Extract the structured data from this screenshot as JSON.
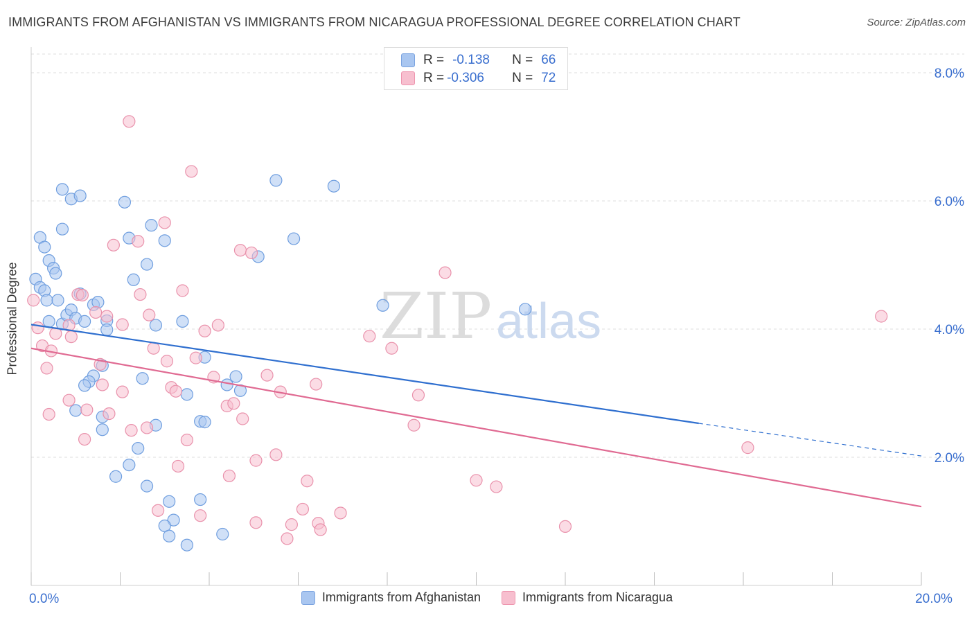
{
  "title": "IMMIGRANTS FROM AFGHANISTAN VS IMMIGRANTS FROM NICARAGUA PROFESSIONAL DEGREE CORRELATION CHART",
  "source": "Source: ZipAtlas.com",
  "watermark": {
    "zip": "ZIP",
    "atlas": "atlas"
  },
  "stats": [
    {
      "r_label": "R =",
      "r_value": "-0.138",
      "n_label": "N =",
      "n_value": "66",
      "color": "#a9c6f0",
      "border": "#7aa3e0"
    },
    {
      "r_label": "R =",
      "r_value": "-0.306",
      "n_label": "N =",
      "n_value": "72",
      "color": "#f7bfcf",
      "border": "#ee94ae"
    }
  ],
  "chart_data": {
    "type": "scatter",
    "title": "IMMIGRANTS FROM AFGHANISTAN VS IMMIGRANTS FROM NICARAGUA PROFESSIONAL DEGREE CORRELATION CHART",
    "xlabel": "",
    "ylabel": "Professional Degree",
    "xlim": [
      0,
      20
    ],
    "ylim": [
      0,
      8.4
    ],
    "x_ticks": [
      0,
      2,
      4,
      6,
      8,
      10,
      12,
      14,
      16,
      18,
      20
    ],
    "x_tick_labels": {
      "0": "0.0%",
      "20": "20.0%"
    },
    "y_ticks": [
      2,
      4,
      6,
      8
    ],
    "y_tick_labels": [
      "2.0%",
      "4.0%",
      "6.0%",
      "8.0%"
    ],
    "grid": true,
    "legend_position": "bottom-center",
    "series": [
      {
        "name": "Immigrants from Afghanistan",
        "color": "#a9c6f0",
        "stroke": "#6f9edf",
        "line_color": "#2f6fcf",
        "trend": {
          "x_start": 0.0,
          "y_start": 4.07,
          "x_solid_end": 15.0,
          "y_solid_end": 2.53,
          "x_end": 20.0,
          "y_end": 2.02
        },
        "points": [
          [
            0.1,
            4.78
          ],
          [
            0.2,
            4.65
          ],
          [
            0.3,
            4.6
          ],
          [
            0.35,
            4.45
          ],
          [
            0.4,
            4.12
          ],
          [
            0.2,
            5.43
          ],
          [
            0.3,
            5.28
          ],
          [
            0.4,
            5.07
          ],
          [
            0.5,
            4.95
          ],
          [
            0.55,
            4.87
          ],
          [
            0.7,
            4.08
          ],
          [
            0.6,
            4.45
          ],
          [
            0.8,
            4.22
          ],
          [
            0.9,
            4.3
          ],
          [
            1.0,
            4.17
          ],
          [
            1.1,
            4.55
          ],
          [
            1.2,
            4.12
          ],
          [
            1.4,
            4.38
          ],
          [
            1.5,
            4.42
          ],
          [
            0.7,
            5.56
          ],
          [
            0.7,
            6.18
          ],
          [
            0.9,
            6.03
          ],
          [
            1.1,
            6.08
          ],
          [
            2.1,
            5.98
          ],
          [
            2.2,
            5.42
          ],
          [
            2.7,
            5.62
          ],
          [
            3.0,
            5.38
          ],
          [
            2.6,
            5.01
          ],
          [
            2.3,
            4.77
          ],
          [
            3.4,
            4.12
          ],
          [
            2.8,
            4.06
          ],
          [
            1.7,
            4.13
          ],
          [
            1.7,
            3.99
          ],
          [
            1.6,
            3.43
          ],
          [
            1.4,
            3.27
          ],
          [
            1.3,
            3.18
          ],
          [
            1.2,
            3.12
          ],
          [
            2.5,
            3.23
          ],
          [
            2.4,
            2.14
          ],
          [
            1.6,
            2.43
          ],
          [
            1.0,
            2.73
          ],
          [
            1.6,
            2.63
          ],
          [
            2.8,
            2.5
          ],
          [
            3.5,
            2.98
          ],
          [
            3.8,
            2.56
          ],
          [
            3.9,
            2.55
          ],
          [
            3.9,
            3.56
          ],
          [
            4.4,
            3.13
          ],
          [
            4.6,
            3.26
          ],
          [
            4.7,
            3.04
          ],
          [
            2.2,
            1.88
          ],
          [
            1.9,
            1.7
          ],
          [
            2.6,
            1.55
          ],
          [
            3.1,
            1.31
          ],
          [
            3.2,
            1.02
          ],
          [
            3.0,
            0.93
          ],
          [
            3.1,
            0.77
          ],
          [
            3.5,
            0.63
          ],
          [
            3.8,
            1.34
          ],
          [
            4.3,
            0.8
          ],
          [
            5.5,
            6.32
          ],
          [
            6.8,
            6.23
          ],
          [
            5.1,
            5.13
          ],
          [
            5.9,
            5.41
          ],
          [
            7.9,
            4.37
          ],
          [
            11.1,
            4.31
          ]
        ]
      },
      {
        "name": "Immigrants from Nicaragua",
        "color": "#f7bfcf",
        "stroke": "#e991ab",
        "line_color": "#e06a92",
        "trend": {
          "x_start": 0.0,
          "y_start": 3.7,
          "x_solid_end": 20.0,
          "y_solid_end": 1.23,
          "x_end": 20.0,
          "y_end": 1.23
        },
        "points": [
          [
            0.05,
            4.45
          ],
          [
            0.15,
            4.02
          ],
          [
            0.25,
            3.74
          ],
          [
            0.35,
            3.39
          ],
          [
            0.45,
            3.66
          ],
          [
            0.55,
            3.93
          ],
          [
            0.4,
            2.67
          ],
          [
            0.85,
            2.89
          ],
          [
            0.9,
            3.88
          ],
          [
            0.85,
            4.06
          ],
          [
            1.05,
            4.54
          ],
          [
            1.15,
            4.53
          ],
          [
            1.25,
            2.74
          ],
          [
            1.2,
            2.28
          ],
          [
            1.45,
            4.26
          ],
          [
            1.55,
            3.45
          ],
          [
            1.6,
            3.13
          ],
          [
            1.7,
            4.2
          ],
          [
            1.75,
            2.68
          ],
          [
            1.85,
            5.31
          ],
          [
            2.05,
            3.02
          ],
          [
            2.05,
            4.07
          ],
          [
            2.25,
            2.42
          ],
          [
            2.2,
            7.24
          ],
          [
            2.4,
            5.37
          ],
          [
            2.45,
            4.54
          ],
          [
            2.6,
            2.46
          ],
          [
            2.65,
            4.22
          ],
          [
            2.75,
            3.7
          ],
          [
            2.85,
            1.17
          ],
          [
            3.0,
            5.66
          ],
          [
            3.05,
            3.5
          ],
          [
            3.15,
            3.09
          ],
          [
            3.25,
            3.03
          ],
          [
            3.3,
            1.86
          ],
          [
            3.4,
            4.6
          ],
          [
            3.5,
            2.27
          ],
          [
            3.6,
            6.46
          ],
          [
            3.7,
            3.55
          ],
          [
            3.8,
            1.09
          ],
          [
            3.9,
            3.97
          ],
          [
            4.1,
            3.25
          ],
          [
            4.2,
            4.06
          ],
          [
            4.4,
            2.8
          ],
          [
            4.45,
            1.71
          ],
          [
            4.55,
            2.84
          ],
          [
            4.7,
            5.23
          ],
          [
            4.75,
            2.6
          ],
          [
            4.95,
            5.19
          ],
          [
            5.05,
            0.98
          ],
          [
            5.05,
            1.95
          ],
          [
            5.3,
            3.28
          ],
          [
            5.5,
            2.04
          ],
          [
            5.6,
            3.02
          ],
          [
            5.75,
            0.73
          ],
          [
            5.85,
            0.95
          ],
          [
            6.1,
            1.19
          ],
          [
            6.2,
            1.63
          ],
          [
            6.4,
            3.14
          ],
          [
            6.45,
            0.97
          ],
          [
            6.5,
            0.87
          ],
          [
            6.95,
            1.13
          ],
          [
            7.6,
            3.89
          ],
          [
            8.1,
            3.7
          ],
          [
            8.6,
            2.5
          ],
          [
            8.7,
            2.97
          ],
          [
            9.3,
            4.88
          ],
          [
            10.0,
            1.64
          ],
          [
            10.45,
            1.54
          ],
          [
            12.0,
            0.92
          ],
          [
            16.1,
            2.15
          ],
          [
            19.1,
            4.2
          ]
        ]
      }
    ]
  }
}
